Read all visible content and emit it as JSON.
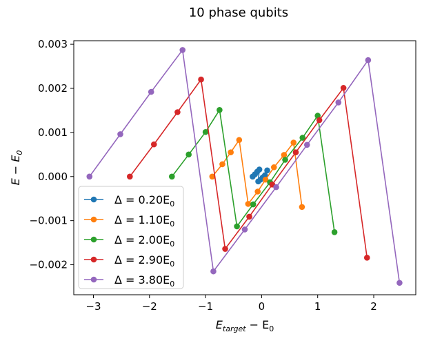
{
  "chart_data": {
    "type": "line",
    "title": "10 phase qubits",
    "xlabel": {
      "main": "E",
      "sub": "target",
      "rest": " − E",
      "sub2": "0"
    },
    "ylabel": {
      "main": "E − E",
      "sub": "0"
    },
    "xlim": [
      -3.35,
      2.75
    ],
    "ylim": [
      -0.00268,
      0.00308
    ],
    "x_ticks": [
      -3,
      -2,
      -1,
      0,
      1,
      2
    ],
    "x_tick_labels": [
      "−3",
      "−2",
      "−1",
      "0",
      "1",
      "2"
    ],
    "y_ticks": [
      -0.002,
      -0.001,
      0.0,
      0.001,
      0.002,
      0.003
    ],
    "y_tick_labels": [
      "−0.002",
      "−0.001",
      "0.000",
      "0.001",
      "0.002",
      "0.003"
    ],
    "legend_location": "lower-left",
    "series": [
      {
        "name": "Δ = 0.20E0",
        "label_main": "Δ = 0.20E",
        "label_sub": "0",
        "color": "#1f77b4",
        "x": [
          -0.16,
          -0.12,
          -0.08,
          -0.04,
          -0.06,
          -0.02,
          0.02,
          0.06,
          0.1
        ],
        "y": [
          0.0,
          5e-05,
          0.00011,
          0.00016,
          -0.00011,
          -7e-05,
          -2e-05,
          3e-05,
          0.00014
        ]
      },
      {
        "name": "Δ = 1.10E0",
        "label_main": "Δ = 1.10E",
        "label_sub": "0",
        "color": "#ff7f0e",
        "x": [
          -0.88,
          -0.7,
          -0.55,
          -0.4,
          -0.24,
          -0.07,
          0.07,
          0.22,
          0.4,
          0.57,
          0.72
        ],
        "y": [
          0.0,
          0.00028,
          0.00055,
          0.00083,
          -0.00062,
          -0.00034,
          -7e-05,
          0.00021,
          0.00049,
          0.00077,
          -0.00069
        ]
      },
      {
        "name": "Δ = 2.00E0",
        "label_main": "Δ = 2.00E",
        "label_sub": "0",
        "color": "#2ca02c",
        "x": [
          -1.6,
          -1.3,
          -1.0,
          -0.75,
          -0.44,
          -0.15,
          0.15,
          0.42,
          0.73,
          1.0,
          1.3
        ],
        "y": [
          0.0,
          0.0005,
          0.00101,
          0.00151,
          -0.00113,
          -0.00063,
          -0.00013,
          0.00038,
          0.00088,
          0.00138,
          -0.00126
        ]
      },
      {
        "name": "Δ = 2.90E0",
        "label_main": "Δ = 2.90E",
        "label_sub": "0",
        "color": "#d62728",
        "x": [
          -2.35,
          -1.92,
          -1.5,
          -1.08,
          -0.65,
          -0.22,
          0.19,
          0.61,
          1.03,
          1.46,
          1.88
        ],
        "y": [
          0.0,
          0.00073,
          0.00146,
          0.0022,
          -0.00164,
          -0.00091,
          -0.00018,
          0.00055,
          0.00128,
          0.00201,
          -0.00184
        ]
      },
      {
        "name": "Δ = 3.80E0",
        "label_main": "Δ = 3.80E",
        "label_sub": "0",
        "color": "#9467bd",
        "x": [
          -3.07,
          -2.52,
          -1.97,
          -1.41,
          -0.86,
          -0.3,
          0.26,
          0.81,
          1.37,
          1.9,
          2.46
        ],
        "y": [
          0.0,
          0.00096,
          0.00192,
          0.00287,
          -0.00215,
          -0.0012,
          -0.00024,
          0.00072,
          0.00168,
          0.00264,
          -0.00241
        ]
      }
    ]
  }
}
